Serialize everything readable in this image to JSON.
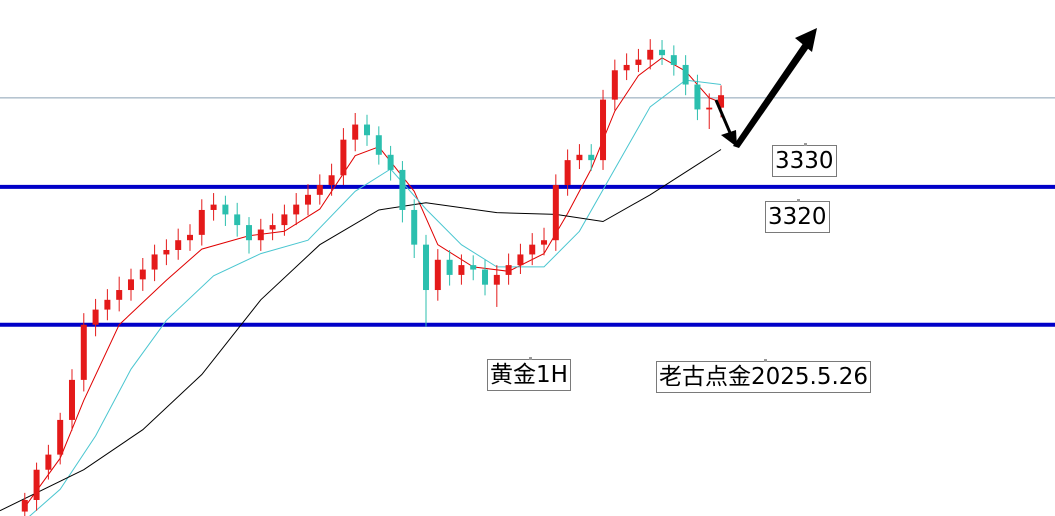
{
  "chart_data": {
    "type": "candlestick",
    "xlim": [
      -2.1,
      87.3
    ],
    "ylim": [
      3283,
      3341
    ],
    "candles": {
      "up_color": "#e41a1a",
      "down_color": "#2bbfae",
      "open": [
        3283.5,
        3284.8,
        3288.2,
        3289.9,
        3293.8,
        3298.3,
        3304.5,
        3306.2,
        3307.3,
        3308.4,
        3309.6,
        3310.7,
        3312.4,
        3312.9,
        3314.0,
        3314.6,
        3317.4,
        3318.0,
        3316.9,
        3315.7,
        3314.0,
        3315.2,
        3315.7,
        3316.9,
        3318.0,
        3319.1,
        3320.2,
        3321.3,
        3325.3,
        3327.0,
        3325.8,
        3323.6,
        3321.9,
        3317.4,
        3313.5,
        3308.4,
        3311.8,
        3310.1,
        3311.2,
        3310.7,
        3309.0,
        3310.1,
        3311.2,
        3312.4,
        3313.5,
        3314.0,
        3320.2,
        3323.0,
        3323.6,
        3323.0,
        3329.8,
        3333.1,
        3333.7,
        3334.3,
        3335.4,
        3334.8,
        3333.7,
        3331.5,
        3328.7,
        3328.9
      ],
      "high": [
        3285.6,
        3289.0,
        3291.0,
        3294.6,
        3299.5,
        3305.8,
        3307.4,
        3308.5,
        3309.9,
        3310.8,
        3312.0,
        3313.5,
        3314.1,
        3315.3,
        3315.8,
        3318.6,
        3319.3,
        3319.0,
        3318.2,
        3316.6,
        3316.4,
        3317.0,
        3318.0,
        3319.3,
        3320.3,
        3321.4,
        3322.6,
        3326.6,
        3328.3,
        3328.1,
        3326.8,
        3324.6,
        3322.9,
        3318.6,
        3314.6,
        3313.0,
        3312.9,
        3312.4,
        3312.3,
        3311.8,
        3311.2,
        3312.5,
        3313.6,
        3314.8,
        3315.4,
        3321.4,
        3324.2,
        3324.8,
        3324.8,
        3330.9,
        3334.3,
        3335.0,
        3335.5,
        3336.6,
        3336.5,
        3335.9,
        3334.8,
        3332.6,
        3330.5,
        3331.4
      ],
      "low": [
        3282.5,
        3283.6,
        3287.1,
        3288.8,
        3292.6,
        3297.0,
        3303.2,
        3305.0,
        3306.0,
        3307.2,
        3308.3,
        3309.4,
        3311.2,
        3311.8,
        3312.8,
        3313.4,
        3316.2,
        3315.6,
        3314.4,
        3312.5,
        3312.8,
        3314.0,
        3314.5,
        3315.7,
        3316.8,
        3318.0,
        3319.0,
        3320.2,
        3324.0,
        3324.6,
        3322.5,
        3320.7,
        3316.0,
        3312.0,
        3304.3,
        3307.2,
        3308.9,
        3309.0,
        3309.5,
        3307.8,
        3306.5,
        3309.0,
        3310.2,
        3311.2,
        3312.3,
        3312.8,
        3319.0,
        3322.0,
        3321.8,
        3321.9,
        3328.6,
        3332.0,
        3332.9,
        3333.2,
        3333.7,
        3332.5,
        3330.3,
        3327.5,
        3326.5,
        3327.8
      ],
      "close": [
        3284.8,
        3288.2,
        3289.9,
        3293.8,
        3298.3,
        3304.5,
        3306.2,
        3307.3,
        3308.4,
        3309.6,
        3310.7,
        3312.4,
        3312.9,
        3314.0,
        3314.6,
        3317.4,
        3318.0,
        3316.9,
        3315.7,
        3314.0,
        3315.2,
        3315.7,
        3316.9,
        3318.0,
        3319.1,
        3320.2,
        3321.3,
        3325.3,
        3327.0,
        3325.8,
        3323.6,
        3321.9,
        3317.4,
        3313.5,
        3308.4,
        3311.8,
        3310.1,
        3311.2,
        3310.7,
        3309.0,
        3310.1,
        3311.2,
        3312.4,
        3313.5,
        3314.0,
        3320.2,
        3323.0,
        3323.6,
        3323.0,
        3329.8,
        3333.1,
        3333.7,
        3334.3,
        3335.4,
        3334.8,
        3333.7,
        3331.5,
        3328.7,
        3328.9,
        3330.3
      ]
    },
    "ma": [
      {
        "color": "#e00000",
        "x": [
          0,
          3,
          5,
          8,
          12,
          15,
          19,
          22,
          25,
          28,
          30,
          33,
          35,
          38,
          41,
          44,
          46,
          48,
          50,
          52,
          54,
          56,
          58,
          59
        ],
        "values": [
          3284.0,
          3289.5,
          3296.0,
          3304.5,
          3309.5,
          3313.0,
          3314.5,
          3315.0,
          3317.5,
          3323.5,
          3324.5,
          3319.5,
          3313.5,
          3311.0,
          3310.5,
          3312.5,
          3317.0,
          3322.0,
          3328.5,
          3332.5,
          3334.5,
          3333.0,
          3330.0,
          3329.5
        ]
      },
      {
        "color": "#4ac6d0",
        "x": [
          0,
          3,
          6,
          9,
          12,
          16,
          20,
          24,
          28,
          31,
          34,
          37,
          40,
          44,
          47,
          50,
          53,
          56,
          59
        ],
        "values": [
          3282.5,
          3286.0,
          3292.0,
          3299.5,
          3305.0,
          3310.0,
          3312.5,
          3314.0,
          3319.5,
          3322.0,
          3317.5,
          3313.5,
          3311.0,
          3311.0,
          3315.0,
          3322.0,
          3329.0,
          3332.0,
          3331.5
        ]
      },
      {
        "color": "#000000",
        "x": [
          -2.1,
          5,
          10,
          15,
          20,
          25,
          30,
          34,
          40,
          45,
          49,
          53,
          57,
          59
        ],
        "values": [
          3283.6,
          3288.2,
          3292.7,
          3298.9,
          3307.3,
          3313.5,
          3317.4,
          3318.2,
          3317.1,
          3316.9,
          3316.1,
          3319.1,
          3322.5,
          3324.2
        ]
      }
    ],
    "levels": [
      {
        "value": 3330,
        "color": "#8aa0b4",
        "width": 1
      },
      {
        "value": 3320,
        "color": "#0000c8",
        "width": 4
      },
      {
        "value": 3304.5,
        "color": "#0000c8",
        "width": 4
      }
    ],
    "annotations": [
      "3330",
      "3320",
      "黄金1H",
      "老古点金2025.5.26"
    ]
  }
}
